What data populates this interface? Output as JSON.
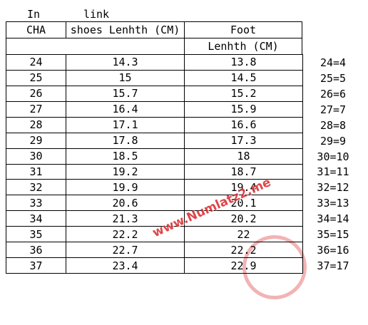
{
  "header": {
    "in": "In",
    "link": "link",
    "cha": "CHA",
    "shoes": "shoes Lenhth (CM)",
    "foot": "Foot",
    "foot_unit": "Lenhth (CM)"
  },
  "table": {
    "rows": [
      [
        "24",
        "14.3",
        "13.8"
      ],
      [
        "25",
        "15",
        "14.5"
      ],
      [
        "26",
        "15.7",
        "15.2"
      ],
      [
        "27",
        "16.4",
        "15.9"
      ],
      [
        "28",
        "17.1",
        "16.6"
      ],
      [
        "29",
        "17.8",
        "17.3"
      ],
      [
        "30",
        "18.5",
        "18"
      ],
      [
        "31",
        "19.2",
        "18.7"
      ],
      [
        "32",
        "19.9",
        "19.4"
      ],
      [
        "33",
        "20.6",
        "20.1"
      ],
      [
        "34",
        "21.3",
        "20.2"
      ],
      [
        "35",
        "22.2",
        "22"
      ],
      [
        "36",
        "22.7",
        "22.2"
      ],
      [
        "37",
        "23.4",
        "22.9"
      ]
    ]
  },
  "side": [
    "24=4",
    "25=5",
    "26=6",
    "27=7",
    "28=8",
    "29=9",
    "30=10",
    "31=11",
    "32=12",
    "33=13",
    "34=14",
    "35=15",
    "36=16",
    "37=17"
  ],
  "watermark": "www.Numlatz2.me"
}
